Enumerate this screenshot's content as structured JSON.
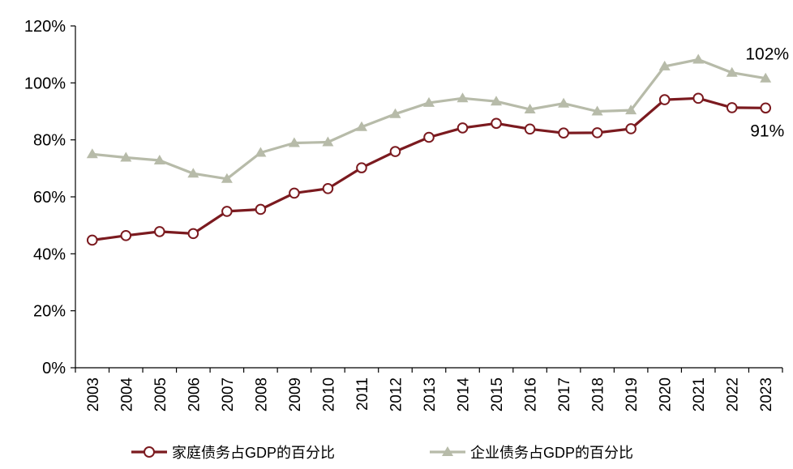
{
  "chart_data": {
    "type": "line",
    "title": "",
    "xlabel": "",
    "ylabel": "",
    "ylim": [
      0,
      120
    ],
    "y_ticks": [
      "0%",
      "20%",
      "40%",
      "60%",
      "80%",
      "100%",
      "120%"
    ],
    "categories": [
      "2003",
      "2004",
      "2005",
      "2006",
      "2007",
      "2008",
      "2009",
      "2010",
      "2011",
      "2012",
      "2013",
      "2014",
      "2015",
      "2016",
      "2017",
      "2018",
      "2019",
      "2020",
      "2021",
      "2022",
      "2023"
    ],
    "grid": false,
    "legend": "bottom",
    "series": [
      {
        "name": "家庭债务占GDP的百分比",
        "marker": "circle",
        "color": "#7b1a1f",
        "values": [
          44.8,
          46.4,
          47.8,
          47.1,
          54.9,
          55.6,
          61.3,
          62.9,
          70.2,
          75.9,
          80.9,
          84.2,
          85.8,
          83.8,
          82.4,
          82.5,
          83.9,
          94.1,
          94.6,
          91.3,
          91.2
        ]
      },
      {
        "name": "企业债务占GDP的百分比",
        "marker": "triangle",
        "color": "#b7bba9",
        "values": [
          75.0,
          73.8,
          72.8,
          68.2,
          66.3,
          75.5,
          78.9,
          79.2,
          84.5,
          89.1,
          93.0,
          94.6,
          93.5,
          90.7,
          92.8,
          90.0,
          90.4,
          105.8,
          108.2,
          103.6,
          101.6
        ]
      }
    ],
    "annotations": [
      {
        "text": "102%",
        "series": 1,
        "index": 20
      },
      {
        "text": "91%",
        "series": 0,
        "index": 20
      }
    ]
  }
}
